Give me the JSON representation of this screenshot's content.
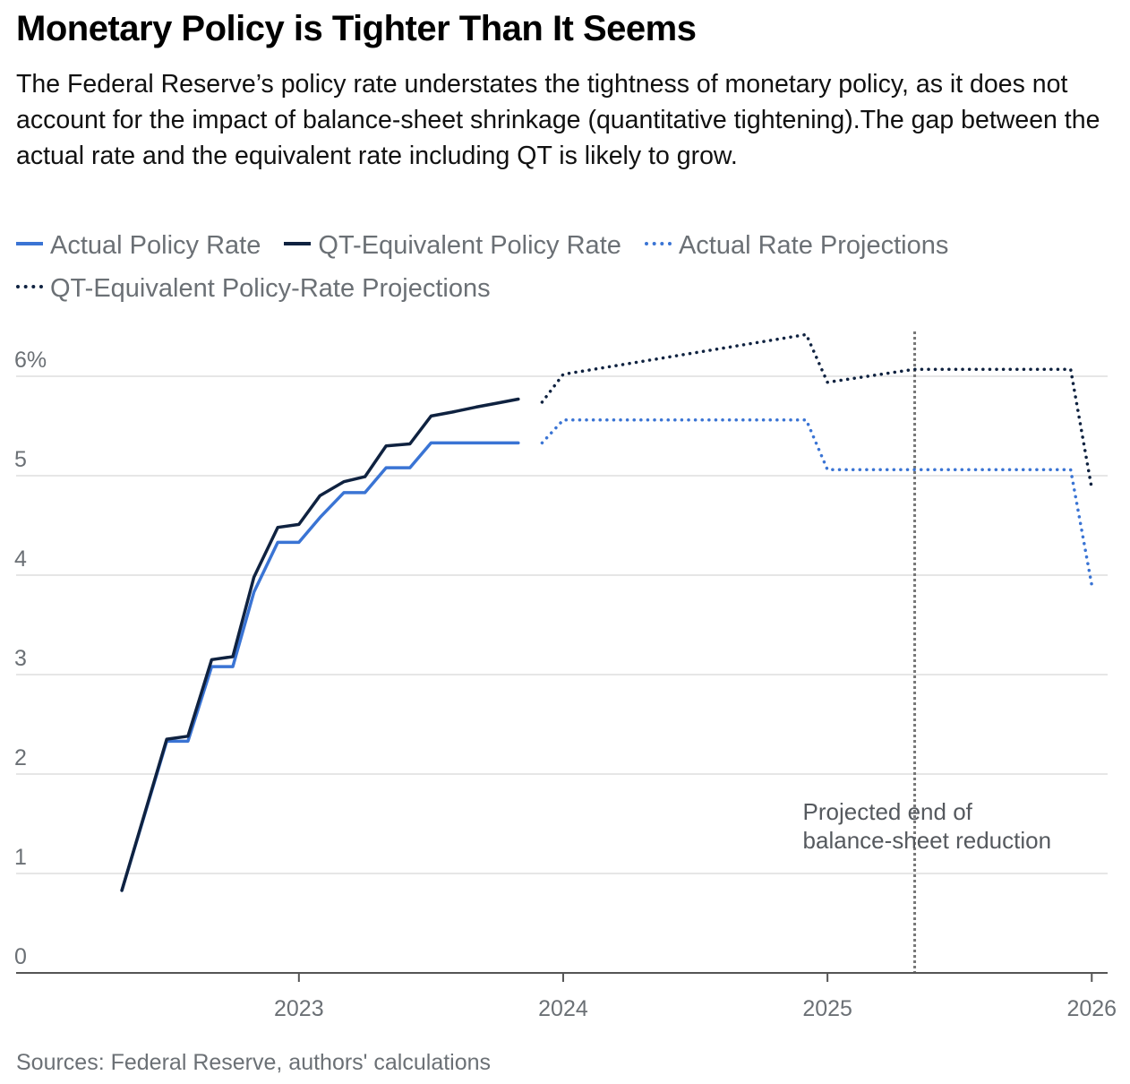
{
  "title": "Monetary Policy is Tighter Than It Seems",
  "subtitle": "The Federal Reserve’s policy rate understates the tightness of monetary policy, as it does not account for the impact of balance-sheet shrinkage (quantitative tightening).The gap between the actual rate and the equivalent rate including QT is likely to grow.",
  "source": "Sources: Federal Reserve, authors' calculations",
  "colors": {
    "actual": "#3a74d4",
    "qt": "#0f2240",
    "grid": "#e6e6e6",
    "axis": "#555555",
    "annotation_line": "#777777"
  },
  "legend": [
    {
      "label": "Actual Policy Rate",
      "color": "#3a74d4",
      "style": "solid"
    },
    {
      "label": "QT-Equivalent Policy Rate",
      "color": "#0f2240",
      "style": "solid"
    },
    {
      "label": "Actual Rate Projections",
      "color": "#3a74d4",
      "style": "dotted"
    },
    {
      "label": "QT-Equivalent Policy-Rate Projections",
      "color": "#0f2240",
      "style": "dotted"
    }
  ],
  "chart_data": {
    "type": "line",
    "y_ticks": [
      {
        "value": 0,
        "label": "0"
      },
      {
        "value": 1,
        "label": "1"
      },
      {
        "value": 2,
        "label": "2"
      },
      {
        "value": 3,
        "label": "3"
      },
      {
        "value": 4,
        "label": "4"
      },
      {
        "value": 5,
        "label": "5"
      },
      {
        "value": 6,
        "label": "6%"
      }
    ],
    "x_ticks": [
      {
        "value": 2023.0,
        "label": "2023"
      },
      {
        "value": 2024.0,
        "label": "2024"
      },
      {
        "value": 2025.0,
        "label": "2025"
      },
      {
        "value": 2026.0,
        "label": "2026"
      }
    ],
    "xlim": [
      2021.93,
      2026.06
    ],
    "ylim": [
      0,
      6
    ],
    "grid": true,
    "legend_position": "top",
    "series": [
      {
        "name": "Actual Policy Rate",
        "style": "solid",
        "color": "#3a74d4",
        "x": [
          2022.33,
          2022.5,
          2022.58,
          2022.67,
          2022.75,
          2022.83,
          2022.92,
          2023.0,
          2023.08,
          2023.17,
          2023.25,
          2023.33,
          2023.42,
          2023.5,
          2023.58,
          2023.67,
          2023.75,
          2023.83
        ],
        "y": [
          0.83,
          2.33,
          2.33,
          3.08,
          3.08,
          3.83,
          4.33,
          4.33,
          4.58,
          4.83,
          4.83,
          5.08,
          5.08,
          5.33,
          5.33,
          5.33,
          5.33,
          5.33
        ]
      },
      {
        "name": "QT-Equivalent Policy Rate",
        "style": "solid",
        "color": "#0f2240",
        "x": [
          2022.33,
          2022.5,
          2022.58,
          2022.67,
          2022.75,
          2022.83,
          2022.92,
          2023.0,
          2023.08,
          2023.17,
          2023.25,
          2023.33,
          2023.42,
          2023.5,
          2023.58,
          2023.67,
          2023.75,
          2023.83
        ],
        "y": [
          0.83,
          2.35,
          2.38,
          3.15,
          3.18,
          3.98,
          4.48,
          4.51,
          4.8,
          4.94,
          4.99,
          5.3,
          5.32,
          5.6,
          5.64,
          5.69,
          5.73,
          5.77
        ]
      },
      {
        "name": "Actual Rate Projections",
        "style": "dotted",
        "color": "#3a74d4",
        "x": [
          2023.92,
          2024.0,
          2024.92,
          2025.0,
          2025.92,
          2026.0
        ],
        "y": [
          5.33,
          5.56,
          5.56,
          5.06,
          5.06,
          3.9
        ]
      },
      {
        "name": "QT-Equivalent Policy-Rate Projections",
        "style": "dotted",
        "color": "#0f2240",
        "x": [
          2023.92,
          2024.0,
          2024.92,
          2025.0,
          2025.33,
          2025.92,
          2026.0
        ],
        "y": [
          5.74,
          6.02,
          6.42,
          5.94,
          6.07,
          6.07,
          4.87
        ]
      }
    ],
    "annotations": [
      {
        "x": 2025.33,
        "text_lines": [
          "Projected end of",
          "balance-sheet reduction"
        ]
      }
    ]
  }
}
